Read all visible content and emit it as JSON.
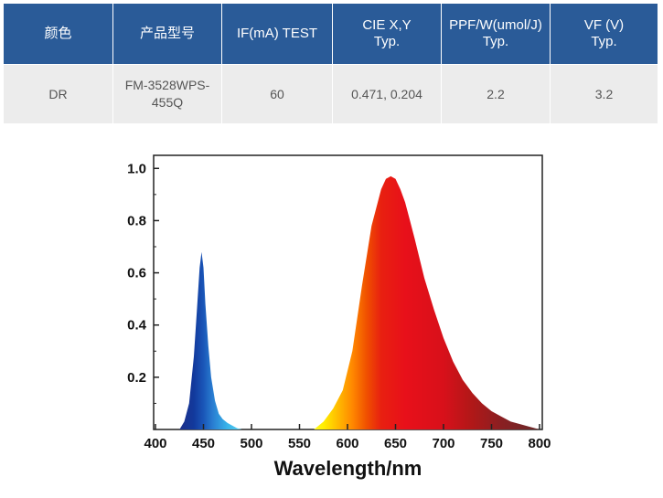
{
  "table": {
    "headers": [
      [
        "颜色"
      ],
      [
        "产品型号"
      ],
      [
        "IF(mA) TEST"
      ],
      [
        "CIE X,Y",
        "Typ."
      ],
      [
        "PPF/W(umol/J)",
        "Typ."
      ],
      [
        "VF (V)",
        "Typ."
      ]
    ],
    "row": {
      "color": "DR",
      "model": "FM-3528WPS-455Q",
      "if_ma": "60",
      "cie": "0.471, 0.204",
      "ppf": "2.2",
      "vf": "3.2"
    },
    "header_bg": "#2a5b98",
    "row_bg": "#ececec"
  },
  "chart_data": {
    "type": "area",
    "title": "",
    "xlabel": "Wavelength/nm",
    "ylabel": "",
    "xlim": [
      400,
      800
    ],
    "ylim": [
      0,
      1.05
    ],
    "x_ticks": [
      "400",
      "450",
      "500",
      "550",
      "600",
      "650",
      "700",
      "750",
      "800"
    ],
    "y_ticks": [
      "0.2",
      "0.4",
      "0.6",
      "0.8",
      "1.0"
    ],
    "grid": false,
    "fill": "spectral gradient (wavelength colored)",
    "series": [
      {
        "x": [
          425,
          430,
          435,
          440,
          443,
          446,
          448,
          450,
          452,
          455,
          458,
          462,
          466,
          470,
          475,
          480,
          485,
          490
        ],
        "values": [
          0,
          0.03,
          0.1,
          0.28,
          0.45,
          0.62,
          0.68,
          0.62,
          0.48,
          0.32,
          0.2,
          0.11,
          0.06,
          0.04,
          0.025,
          0.015,
          0.005,
          0
        ]
      },
      {
        "x": [
          565,
          575,
          585,
          595,
          605,
          615,
          625,
          635,
          640,
          645,
          650,
          655,
          660,
          665,
          670,
          680,
          690,
          700,
          710,
          720,
          730,
          740,
          750,
          760,
          770,
          780,
          790,
          800
        ],
        "values": [
          0,
          0.03,
          0.08,
          0.15,
          0.3,
          0.55,
          0.78,
          0.92,
          0.96,
          0.97,
          0.96,
          0.92,
          0.87,
          0.8,
          0.73,
          0.58,
          0.46,
          0.35,
          0.26,
          0.19,
          0.14,
          0.1,
          0.07,
          0.05,
          0.03,
          0.02,
          0.01,
          0
        ]
      }
    ]
  }
}
